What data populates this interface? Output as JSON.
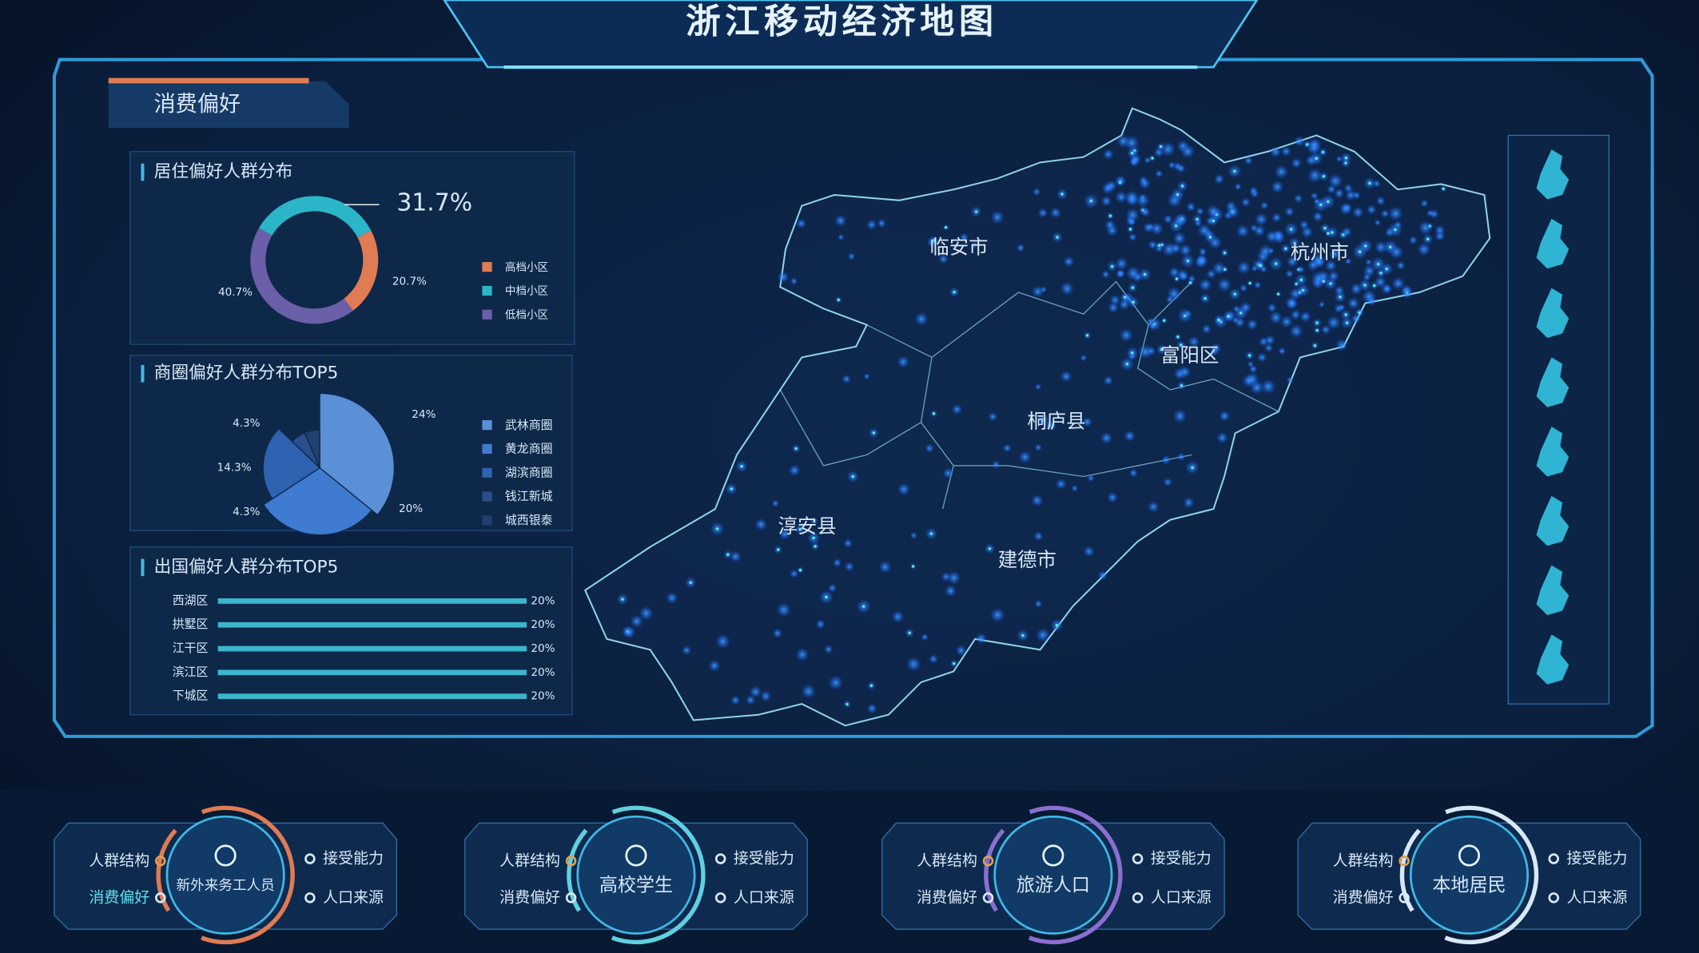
{
  "header": {
    "title": "浙江移动经济地图"
  },
  "panel": {
    "title": "消费偏好"
  },
  "chart_data": [
    {
      "type": "donut",
      "title": "居住偏好人群分布",
      "categories": [
        "高档小区",
        "中档小区",
        "低档小区"
      ],
      "values": [
        20.7,
        31.7,
        40.7
      ],
      "value_labels": [
        "20.7%",
        "31.7%",
        "40.7%"
      ],
      "colors": [
        "#e07b54",
        "#2bb5c8",
        "#6a5fa8"
      ]
    },
    {
      "type": "rose",
      "title": "商圈偏好人群分布TOP5",
      "categories": [
        "武林商圈",
        "黄龙商圈",
        "湖滨商圈",
        "钱江新城",
        "城西银泰"
      ],
      "values": [
        24,
        20,
        14.3,
        4.3,
        4.3
      ],
      "value_labels": [
        "24%",
        "20%",
        "14.3%",
        "4.3%",
        "4.3%"
      ],
      "colors": [
        "#5b8fd6",
        "#3f7bd0",
        "#2f62b0",
        "#2a4f8c",
        "#22406e"
      ]
    },
    {
      "type": "hbar",
      "title": "出国偏好人群分布TOP5",
      "categories": [
        "西湖区",
        "拱墅区",
        "江干区",
        "滨江区",
        "下城区"
      ],
      "values": [
        20,
        20,
        20,
        20,
        20
      ],
      "value_labels": [
        "20%",
        "20%",
        "20%",
        "20%",
        "20%"
      ],
      "color": "#3bb6cc"
    }
  ],
  "map": {
    "labels": [
      "临安市",
      "杭州市",
      "富阳区",
      "桐庐县",
      "淳安县",
      "建德市"
    ]
  },
  "nav": [
    {
      "title": "新外来务工人员",
      "items": [
        "人群结构",
        "消费偏好",
        "接受能力",
        "人口来源"
      ]
    },
    {
      "title": "高校学生",
      "items": [
        "人群结构",
        "消费偏好",
        "接受能力",
        "人口来源"
      ]
    },
    {
      "title": "旅游人口",
      "items": [
        "人群结构",
        "消费偏好",
        "接受能力",
        "人口来源"
      ]
    },
    {
      "title": "本地居民",
      "items": [
        "人群结构",
        "消费偏好",
        "接受能力",
        "人口来源"
      ]
    }
  ]
}
